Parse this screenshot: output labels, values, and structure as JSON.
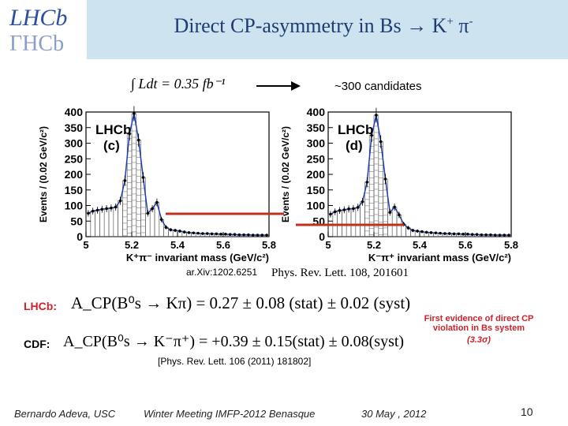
{
  "header": {
    "title_main": "Direct CP-asymmetry in Bs → K",
    "title_sup1": "+",
    "title_mid": " π",
    "title_sup2": "-",
    "logo_text_top": "LHCb",
    "logo_text_bottom": "ΓΗCb"
  },
  "figure": {
    "luminosity": "∫ Ldt = 0.35 fb⁻¹",
    "candidates": "~300 candidates",
    "arxiv": "ar.Xiv:1202.6251",
    "journal_ref": "Phys. Rev. Lett. 108, 201601"
  },
  "results": {
    "lhcb_label": "LHCb:",
    "lhcb_formula": "A_CP(B⁰s → Kπ) = 0.27 ± 0.08 (stat) ± 0.02 (syst)",
    "cdf_label": "CDF:",
    "cdf_formula": "A_CP(B⁰s → K⁻π⁺) = +0.39 ± 0.15(stat) ± 0.08(syst)",
    "cdf_ref": "[Phys. Rev. Lett. 106 (2011) 181802]",
    "evidence_line1": "First evidence of direct CP",
    "evidence_line2": "violation in Bs system",
    "evidence_sigma": "(3.3σ)"
  },
  "footer": {
    "author": "Bernardo Adeva, USC",
    "meeting": "Winter Meeting IMFP-2012  Benasque",
    "date": "30 May , 2012",
    "page": "10"
  },
  "colors": {
    "title": "#1f3b73",
    "header_bg": "#cde3ef",
    "accent_red": "#d0202a",
    "fit_blue": "#1f3fb0"
  },
  "chart_data": [
    {
      "type": "histogram",
      "panel_label": "LHCb (c)",
      "panel_text_1": "LHCb",
      "panel_text_2": "(c)",
      "xlabel": "K⁺π⁻ invariant mass (GeV/c²)",
      "ylabel": "Events / (0.02 GeV/c²)",
      "xlim": [
        5.0,
        5.8
      ],
      "ylim": [
        0,
        400
      ],
      "xticks": [
        "5",
        "5.2",
        "5.4",
        "5.6",
        "5.8"
      ],
      "yticks": [
        "0",
        "50",
        "100",
        "150",
        "200",
        "250",
        "300",
        "350",
        "400"
      ],
      "x": [
        5.01,
        5.03,
        5.05,
        5.07,
        5.09,
        5.11,
        5.13,
        5.15,
        5.17,
        5.19,
        5.21,
        5.23,
        5.25,
        5.27,
        5.29,
        5.31,
        5.33,
        5.35,
        5.37,
        5.39,
        5.41,
        5.43,
        5.45,
        5.47,
        5.49,
        5.51,
        5.53,
        5.55,
        5.57,
        5.59,
        5.61,
        5.63,
        5.65,
        5.67,
        5.69,
        5.71,
        5.73,
        5.75,
        5.77,
        5.79
      ],
      "values": [
        75,
        82,
        85,
        88,
        90,
        92,
        95,
        115,
        180,
        330,
        395,
        310,
        190,
        75,
        90,
        110,
        55,
        30,
        22,
        20,
        18,
        15,
        13,
        12,
        11,
        10,
        10,
        9,
        9,
        8,
        8,
        7,
        7,
        6,
        6,
        6,
        5,
        5,
        5,
        5
      ]
    },
    {
      "type": "histogram",
      "panel_label": "LHCb (d)",
      "panel_text_1": "LHCb",
      "panel_text_2": "(d)",
      "xlabel": "K⁻π⁺ invariant mass (GeV/c²)",
      "ylabel": "Events / (0.02 GeV/c²)",
      "xlim": [
        5.0,
        5.8
      ],
      "ylim": [
        0,
        400
      ],
      "xticks": [
        "5",
        "5.2",
        "5.4",
        "5.6",
        "5.8"
      ],
      "yticks": [
        "0",
        "50",
        "100",
        "150",
        "200",
        "250",
        "300",
        "350",
        "400"
      ],
      "x": [
        5.01,
        5.03,
        5.05,
        5.07,
        5.09,
        5.11,
        5.13,
        5.15,
        5.17,
        5.19,
        5.21,
        5.23,
        5.25,
        5.27,
        5.29,
        5.31,
        5.33,
        5.35,
        5.37,
        5.39,
        5.41,
        5.43,
        5.45,
        5.47,
        5.49,
        5.51,
        5.53,
        5.55,
        5.57,
        5.59,
        5.61,
        5.63,
        5.65,
        5.67,
        5.69,
        5.71,
        5.73,
        5.75,
        5.77,
        5.79
      ],
      "values": [
        72,
        80,
        84,
        86,
        89,
        90,
        94,
        112,
        175,
        325,
        390,
        305,
        185,
        78,
        95,
        70,
        40,
        28,
        20,
        18,
        16,
        14,
        13,
        12,
        11,
        10,
        10,
        9,
        9,
        8,
        8,
        7,
        7,
        6,
        6,
        6,
        5,
        5,
        5,
        5
      ]
    }
  ]
}
